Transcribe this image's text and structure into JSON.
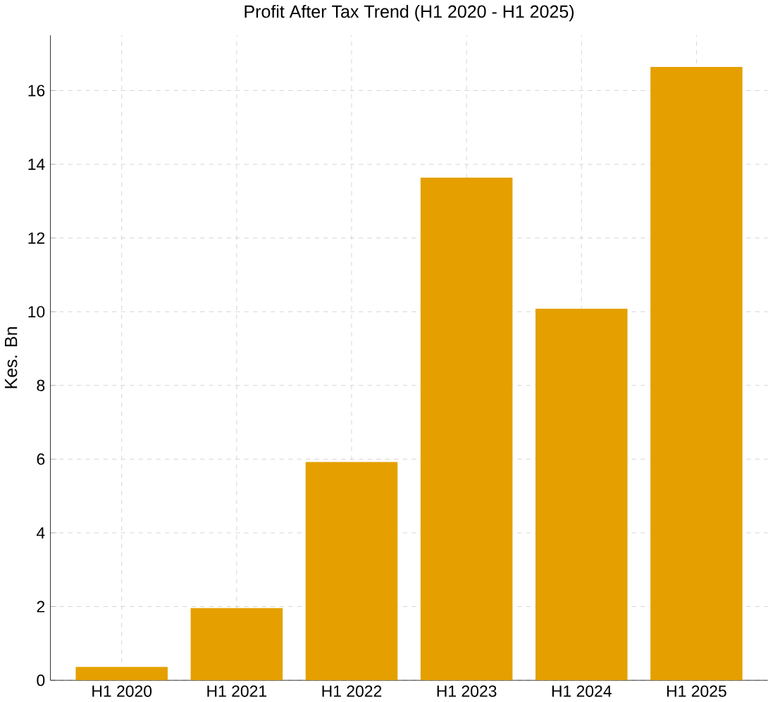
{
  "chart_data": {
    "type": "bar",
    "title": "Profit After Tax Trend (H1 2020 - H1 2025)",
    "ylabel": "Kes. Bn",
    "categories": [
      "H1 2020",
      "H1 2021",
      "H1 2022",
      "H1 2023",
      "H1 2024",
      "H1 2025"
    ],
    "values": [
      0.36,
      1.96,
      5.92,
      13.64,
      10.08,
      16.64
    ],
    "color": "#e5a000",
    "ylim": [
      0,
      17.5
    ],
    "yticks": [
      0,
      2,
      4,
      6,
      8,
      10,
      12,
      14,
      16
    ],
    "grid": true
  }
}
